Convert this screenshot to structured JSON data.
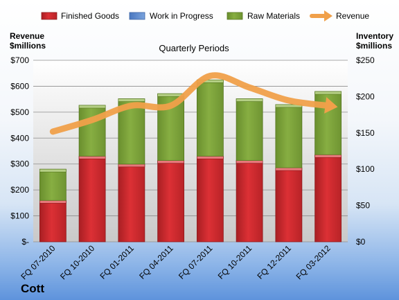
{
  "company": "Cott",
  "colors": {
    "finished": "#d42a2e",
    "finished_dark": "#8e1b1d",
    "wip": "#5b87cc",
    "raw": "#7ea53a",
    "raw_dark": "#55761f",
    "revenue": "#f0a04a"
  },
  "chart_data": {
    "type": "bar",
    "stacked": true,
    "title": "Quarterly Periods",
    "ylabel_left": [
      "Revenue",
      "$millions"
    ],
    "ylabel_right": [
      "Inventory",
      "$millions"
    ],
    "categories": [
      "FQ 07-2010",
      "FQ 10-2010",
      "FQ 01-2011",
      "FQ 04-2011",
      "FQ 07-2011",
      "FQ 10-2011",
      "FQ 12-2011",
      "FQ 03-2012"
    ],
    "left_ticks": [
      "$-",
      "$100",
      "$200",
      "$300",
      "$400",
      "$500",
      "$600",
      "$700"
    ],
    "right_ticks": [
      "$0",
      "$50",
      "$100",
      "$150",
      "$200",
      "$250"
    ],
    "ylim_left": [
      0,
      700
    ],
    "ylim_right": [
      0,
      250
    ],
    "grid": true,
    "legend_position": "top",
    "series": [
      {
        "name": "Finished Goods",
        "axis": "right",
        "kind": "bar",
        "values": [
          57,
          118,
          107,
          112,
          118,
          112,
          102,
          120
        ]
      },
      {
        "name": "Work in Progress",
        "axis": "right",
        "kind": "bar",
        "values": [
          0,
          0,
          0,
          0,
          0,
          0,
          0,
          0
        ]
      },
      {
        "name": "Raw Materials",
        "axis": "right",
        "kind": "bar",
        "values": [
          43,
          70,
          90,
          92,
          105,
          85,
          87,
          87
        ]
      },
      {
        "name": "Revenue",
        "axis": "left",
        "kind": "line",
        "values": [
          425,
          470,
          525,
          525,
          640,
          595,
          545,
          525
        ]
      }
    ]
  }
}
